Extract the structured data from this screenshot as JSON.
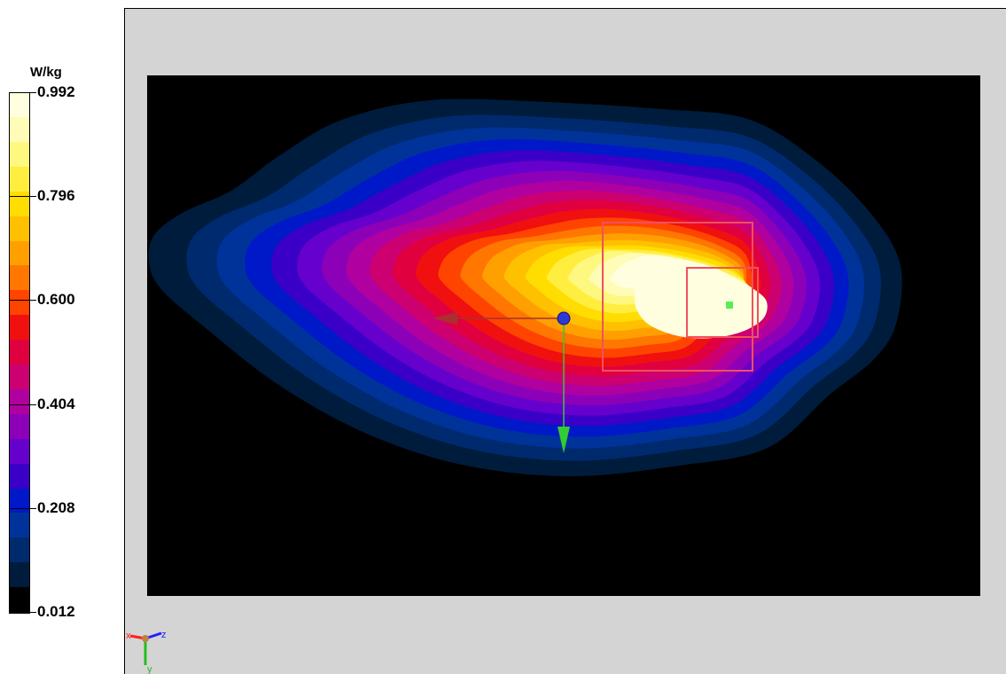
{
  "chart_data": {
    "type": "heatmap",
    "title": "",
    "colorbar": {
      "unit": "W/kg",
      "min": 0.012,
      "max": 0.992,
      "tick_labels": [
        "0.992",
        "0.796",
        "0.600",
        "0.404",
        "0.208",
        "0.012"
      ],
      "tick_values": [
        0.992,
        0.796,
        0.6,
        0.404,
        0.208,
        0.012
      ],
      "levels": [
        {
          "value": 0.012,
          "color": "#000000"
        },
        {
          "value": 0.061,
          "color": "#001c3c"
        },
        {
          "value": 0.11,
          "color": "#002a6e"
        },
        {
          "value": 0.159,
          "color": "#003399"
        },
        {
          "value": 0.208,
          "color": "#0019c8"
        },
        {
          "value": 0.257,
          "color": "#3a00c8"
        },
        {
          "value": 0.306,
          "color": "#6600cc"
        },
        {
          "value": 0.355,
          "color": "#8c00b8"
        },
        {
          "value": 0.404,
          "color": "#b000a0"
        },
        {
          "value": 0.453,
          "color": "#cc0070"
        },
        {
          "value": 0.502,
          "color": "#e00040"
        },
        {
          "value": 0.551,
          "color": "#f01010"
        },
        {
          "value": 0.6,
          "color": "#ff4400"
        },
        {
          "value": 0.649,
          "color": "#ff7700"
        },
        {
          "value": 0.698,
          "color": "#ffa000"
        },
        {
          "value": 0.747,
          "color": "#ffc000"
        },
        {
          "value": 0.796,
          "color": "#ffdd00"
        },
        {
          "value": 0.845,
          "color": "#ffee40"
        },
        {
          "value": 0.894,
          "color": "#fff880"
        },
        {
          "value": 0.943,
          "color": "#fffcb8"
        },
        {
          "value": 0.992,
          "color": "#ffffe0"
        }
      ]
    },
    "peak_value": 0.992,
    "min_value": 0.012,
    "background_color": "#000000",
    "viewport_color": "#d4d4d4"
  },
  "axes_triad": {
    "x_label": "x",
    "y_label": "y",
    "z_label": "z",
    "x_color": "#ff2020",
    "y_color": "#20c020",
    "z_color": "#2020ff"
  },
  "overlay": {
    "probe_origin_icon": "sphere-marker",
    "arrow_colors": {
      "x": "#aa3030",
      "y": "#33cc33"
    },
    "box_color": "#f05060",
    "peak_marker_color": "#55ee55"
  }
}
